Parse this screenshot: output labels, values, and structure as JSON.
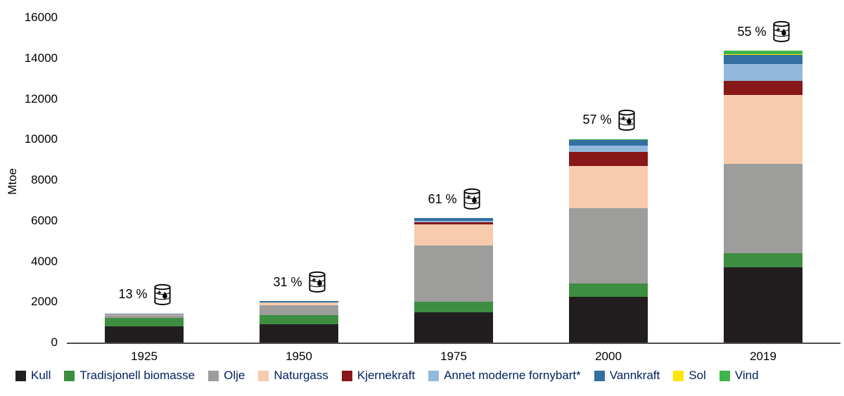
{
  "chart_data": {
    "type": "bar",
    "stacked": true,
    "title": "",
    "xlabel": "",
    "ylabel": "Mtoe",
    "ylim": [
      0,
      16000
    ],
    "ytick_step": 2000,
    "grid": false,
    "legend_position": "bottom",
    "legend_text_color": "#00205c",
    "categories": [
      "1925",
      "1950",
      "1975",
      "2000",
      "2019"
    ],
    "series": [
      {
        "name": "Kull",
        "color": "#221e1f",
        "values": [
          800,
          900,
          1500,
          2250,
          3700
        ]
      },
      {
        "name": "Tradisjonell biomasse",
        "color": "#3e8e41",
        "values": [
          420,
          450,
          520,
          650,
          700
        ]
      },
      {
        "name": "Olje",
        "color": "#9d9d9c",
        "values": [
          140,
          470,
          2750,
          3700,
          4400
        ]
      },
      {
        "name": "Naturgass",
        "color": "#f7cbac",
        "values": [
          40,
          170,
          1050,
          2100,
          3400
        ]
      },
      {
        "name": "Kjernekraft",
        "color": "#871719",
        "values": [
          0,
          0,
          100,
          700,
          700
        ]
      },
      {
        "name": "Annet moderne fornybart*",
        "color": "#92b9dc",
        "values": [
          0,
          0,
          60,
          300,
          800
        ]
      },
      {
        "name": "Vannkraft",
        "color": "#336fa0",
        "values": [
          20,
          40,
          140,
          300,
          450
        ]
      },
      {
        "name": "Sol",
        "color": "#ffe500",
        "values": [
          0,
          0,
          0,
          0,
          60
        ]
      },
      {
        "name": "Vind",
        "color": "#3db54a",
        "values": [
          0,
          0,
          0,
          20,
          150
        ]
      }
    ],
    "annotations": [
      {
        "category": "1925",
        "label": "13 %",
        "icon": "oil-barrel-icon"
      },
      {
        "category": "1950",
        "label": "31 %",
        "icon": "oil-barrel-icon"
      },
      {
        "category": "1975",
        "label": "61 %",
        "icon": "oil-barrel-icon"
      },
      {
        "category": "2000",
        "label": "57 %",
        "icon": "oil-barrel-icon"
      },
      {
        "category": "2019",
        "label": "55 %",
        "icon": "oil-barrel-icon"
      }
    ],
    "ytick_labels": [
      "0",
      "2000",
      "4000",
      "6000",
      "8000",
      "10000",
      "12000",
      "14000",
      "16000"
    ]
  }
}
